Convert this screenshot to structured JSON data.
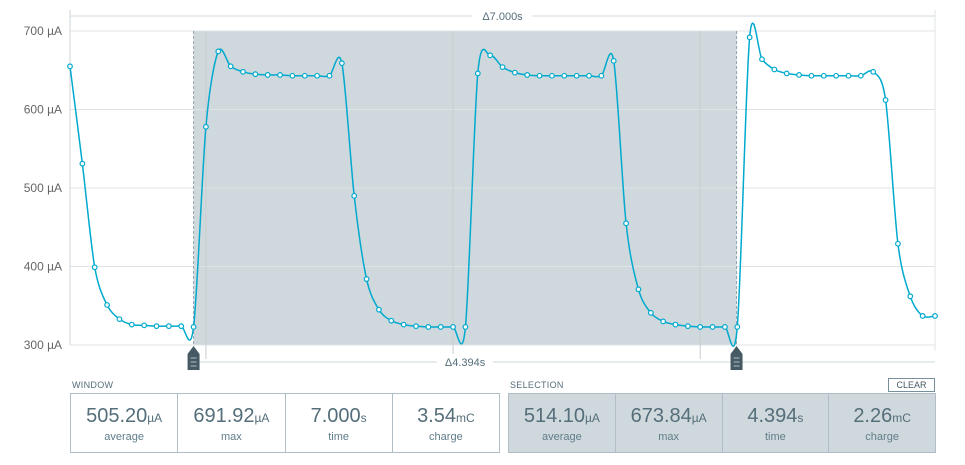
{
  "chart_data": {
    "type": "line",
    "ylabel": "",
    "xlabel": "",
    "y_unit": "µA",
    "ylim": [
      300,
      700
    ],
    "xlim_seconds": [
      0,
      7.0
    ],
    "yticks": [
      "700 µA",
      "600 µA",
      "500 µA",
      "400 µA",
      "300 µA"
    ],
    "ytick_values": [
      700,
      600,
      500,
      400,
      300
    ],
    "grid": true,
    "x_step_seconds": 0.1,
    "values": [
      655,
      531,
      399,
      351,
      333,
      326,
      325,
      324,
      324,
      324,
      323,
      578,
      674,
      655,
      648,
      645,
      644,
      644,
      643,
      643,
      643,
      643,
      659,
      490,
      384,
      345,
      331,
      326,
      324,
      323,
      323,
      323,
      323,
      646,
      669,
      654,
      647,
      644,
      643,
      643,
      643,
      643,
      643,
      643,
      662,
      455,
      371,
      341,
      330,
      326,
      324,
      323,
      323,
      323,
      323,
      692,
      664,
      651,
      646,
      644,
      643,
      643,
      643,
      643,
      643,
      648,
      612,
      429,
      362,
      337,
      337
    ],
    "series_color": "#00a9ce",
    "selection_seconds": [
      1.0,
      5.394
    ],
    "selection_color": "#cfd8dc",
    "window_delta_label": "Δ7.000s",
    "selection_delta_label": "Δ4.394s"
  },
  "window": {
    "label": "WINDOW",
    "stats": [
      {
        "value": "505.20",
        "unit": "µA",
        "caption": "average"
      },
      {
        "value": "691.92",
        "unit": "µA",
        "caption": "max"
      },
      {
        "value": "7.000",
        "unit": "s",
        "caption": "time"
      },
      {
        "value": "3.54",
        "unit": "mC",
        "caption": "charge"
      }
    ]
  },
  "selection": {
    "label": "SELECTION",
    "clear_label": "CLEAR",
    "stats": [
      {
        "value": "514.10",
        "unit": "µA",
        "caption": "average"
      },
      {
        "value": "673.84",
        "unit": "µA",
        "caption": "max"
      },
      {
        "value": "4.394",
        "unit": "s",
        "caption": "time"
      },
      {
        "value": "2.26",
        "unit": "mC",
        "caption": "charge"
      }
    ]
  }
}
